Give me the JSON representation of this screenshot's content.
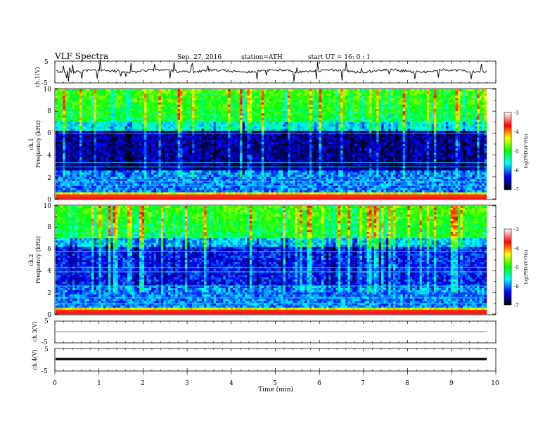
{
  "header": {
    "title": "VLF  Spectra",
    "date": "Sep. 27, 2016",
    "station": "station=ATH",
    "start": "start  UT  =    16: 0   : 1"
  },
  "colorbar": {
    "label": "log(PSD)(V²/Hz)",
    "ticks": [
      "-3",
      "-4",
      "-5",
      "-6",
      "-7"
    ],
    "values": [
      -3,
      -4,
      -5,
      -6,
      -7
    ],
    "colors": [
      "#ffffff",
      "#ff0000",
      "#ffff00",
      "#00ff00",
      "#00ffff",
      "#0000ff",
      "#000000"
    ]
  },
  "chart_data": [
    {
      "type": "line",
      "name": "ch1-waveform",
      "ylabel": "ch.1(V)",
      "ylim": [
        -5,
        5
      ],
      "yticks": [
        "5",
        "-5"
      ],
      "xlim": [
        0,
        10
      ],
      "note": "noisy waveform near 0 V with spikes, data from 0 to ~9.8 min"
    },
    {
      "type": "heatmap",
      "name": "ch1-spectrogram",
      "ylabel": [
        "ch.1",
        "Frequency  (kHz)"
      ],
      "ylim": [
        0,
        10
      ],
      "yticks": [
        "0",
        "2",
        "4",
        "6",
        "8",
        "10"
      ],
      "xlim": [
        0,
        10
      ],
      "zlim": [
        -7,
        -3
      ],
      "zlabel": "log(PSD)(V²/Hz)"
    },
    {
      "type": "heatmap",
      "name": "ch2-spectrogram",
      "ylabel": [
        "ch.2",
        "Frequency  (kHz)"
      ],
      "ylim": [
        0,
        10
      ],
      "yticks": [
        "0",
        "2",
        "4",
        "6",
        "8",
        "10"
      ],
      "xlim": [
        0,
        10
      ],
      "zlim": [
        -7,
        -3
      ],
      "zlabel": "log(PSD)(V²/Hz)"
    },
    {
      "type": "line",
      "name": "ch3-waveform",
      "ylabel": "ch.3(V)",
      "ylim": [
        -5,
        5
      ],
      "yticks": [
        "5",
        "-5"
      ],
      "xlim": [
        0,
        10
      ],
      "note": "flat thin trace near 0 V"
    },
    {
      "type": "line",
      "name": "ch4-waveform",
      "ylabel": "ch.4(V)",
      "ylim": [
        -5,
        5
      ],
      "yticks": [
        "5",
        "-5"
      ],
      "xlim": [
        0,
        10
      ],
      "note": "flat thick trace near 0 V"
    }
  ],
  "xaxis": {
    "label": "Time  (min)",
    "ticks": [
      "0",
      "1",
      "2",
      "3",
      "4",
      "5",
      "6",
      "7",
      "8",
      "9",
      "10"
    ]
  }
}
